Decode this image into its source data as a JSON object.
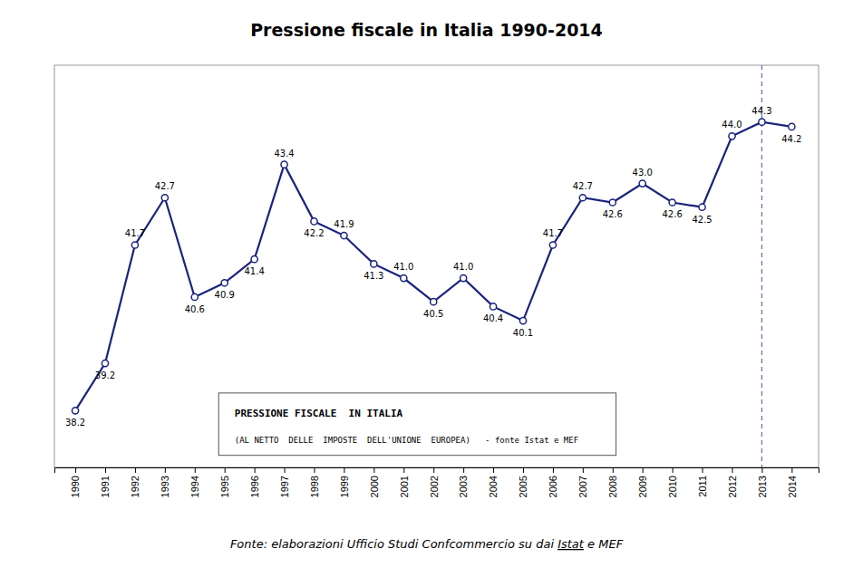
{
  "chart_data": {
    "type": "line",
    "title": "Pressione fiscale in Italia 1990-2014",
    "x": [
      1990,
      1991,
      1992,
      1993,
      1994,
      1995,
      1996,
      1997,
      1998,
      1999,
      2000,
      2001,
      2002,
      2003,
      2004,
      2005,
      2006,
      2007,
      2008,
      2009,
      2010,
      2011,
      2012,
      2013,
      2014
    ],
    "values": [
      38.2,
      39.2,
      41.7,
      42.7,
      40.6,
      40.9,
      41.4,
      43.4,
      42.2,
      41.9,
      41.3,
      41.0,
      40.5,
      41.0,
      40.4,
      40.1,
      41.7,
      42.7,
      42.6,
      43.0,
      42.6,
      42.5,
      44.0,
      44.3,
      44.2
    ],
    "value_labels": [
      "38.2",
      "39.2",
      "41.7",
      "42.7",
      "40.6",
      "40.9",
      "41.4",
      "43.4",
      "42.2",
      "41.9",
      "41.3",
      "41.0",
      "40.5",
      "41.0",
      "40.4",
      "40.1",
      "41.7",
      "42.7",
      "42.6",
      "43.0",
      "42.6",
      "42.5",
      "44.0",
      "44.3",
      "44.2"
    ],
    "color": "#1a237e",
    "marker": "circle",
    "data_labels": true,
    "xlim": [
      1989.3,
      2014.9
    ],
    "xticks": [
      1990,
      1991,
      1992,
      1993,
      1994,
      1995,
      1996,
      1997,
      1998,
      1999,
      2000,
      2001,
      2002,
      2003,
      2004,
      2005,
      2006,
      2007,
      2008,
      2009,
      2010,
      2011,
      2012,
      2013,
      2014
    ],
    "ylim": [
      37.0,
      45.5
    ],
    "tick_labels": "x",
    "grid": false,
    "vline": {
      "x": 2013,
      "color": "#6677bb",
      "line_style": "dashed"
    },
    "annotations": [
      "PRESSIONE FISCALE  IN ITALIA",
      "(AL NETTO  DELLE  IMPOSTE  DELL'UNIONE  EUROPEA)   - fonte Istat e MEF",
      "Fonte: elaborazioni Ufficio Studi Confcommercio su dai ",
      "Istat",
      " e MEF"
    ]
  }
}
